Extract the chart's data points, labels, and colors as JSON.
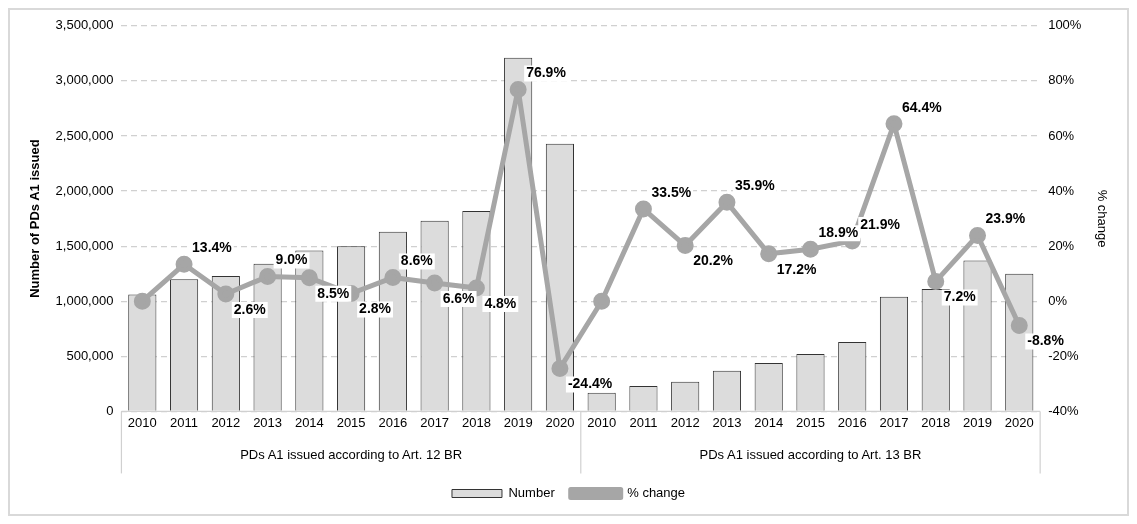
{
  "chart_data": {
    "type": "bar",
    "categories": [
      "2010",
      "2011",
      "2012",
      "2013",
      "2014",
      "2015",
      "2016",
      "2017",
      "2018",
      "2019",
      "2020",
      "2010",
      "2011",
      "2012",
      "2013",
      "2014",
      "2015",
      "2016",
      "2017",
      "2018",
      "2019",
      "2020"
    ],
    "series": [
      {
        "name": "Number",
        "color": "#dcdcdc",
        "values": [
          1060000,
          1200000,
          1230000,
          1340000,
          1460000,
          1500000,
          1630000,
          1730000,
          1820000,
          3210000,
          2430000,
          170000,
          230000,
          270000,
          370000,
          440000,
          520000,
          630000,
          1040000,
          1110000,
          1370000,
          1250000
        ]
      },
      {
        "name": "% change",
        "type": "line",
        "axis": "y2",
        "color": "#a6a6a6",
        "values": [
          0,
          13.4,
          2.6,
          9.0,
          8.5,
          2.8,
          8.6,
          6.6,
          4.8,
          76.9,
          -24.4,
          0,
          33.5,
          20.2,
          35.9,
          17.2,
          18.9,
          21.9,
          64.4,
          7.2,
          23.9,
          -8.8
        ],
        "value_labels": [
          null,
          "13.4%",
          "2.6%",
          "9.0%",
          "8.5%",
          "2.8%",
          "8.6%",
          "6.6%",
          "4.8%",
          "76.9%",
          "-24.4%",
          null,
          "33.5%",
          "20.2%",
          "35.9%",
          "17.2%",
          "18.9%",
          "21.9%",
          "64.4%",
          "7.2%",
          "23.9%",
          "-8.8%"
        ]
      }
    ],
    "ylabel": "Number of PDs A1 issued",
    "y2label": "% change",
    "ylim": [
      0,
      3500000
    ],
    "yticks": [
      {
        "value": 0,
        "label": "0"
      },
      {
        "value": 500000,
        "label": "500,000"
      },
      {
        "value": 1000000,
        "label": "1,000,000"
      },
      {
        "value": 1500000,
        "label": "1,500,000"
      },
      {
        "value": 2000000,
        "label": "2,000,000"
      },
      {
        "value": 2500000,
        "label": "2,500,000"
      },
      {
        "value": 3000000,
        "label": "3,000,000"
      },
      {
        "value": 3500000,
        "label": "3,500,000"
      }
    ],
    "y2lim": [
      -40,
      100
    ],
    "y2ticks": [
      {
        "value": -40,
        "label": "-40%"
      },
      {
        "value": -20,
        "label": "-20%"
      },
      {
        "value": 0,
        "label": "0%"
      },
      {
        "value": 20,
        "label": "20%"
      },
      {
        "value": 40,
        "label": "40%"
      },
      {
        "value": 60,
        "label": "60%"
      },
      {
        "value": 80,
        "label": "80%"
      },
      {
        "value": 100,
        "label": "100%"
      }
    ],
    "annotations": [
      "PDs A1 issued according to Art. 12 BR",
      "PDs A1 issued according to Art. 13 BR"
    ],
    "grid": "y",
    "legend": "bottom",
    "marker": "circle",
    "line_style": "solid"
  }
}
